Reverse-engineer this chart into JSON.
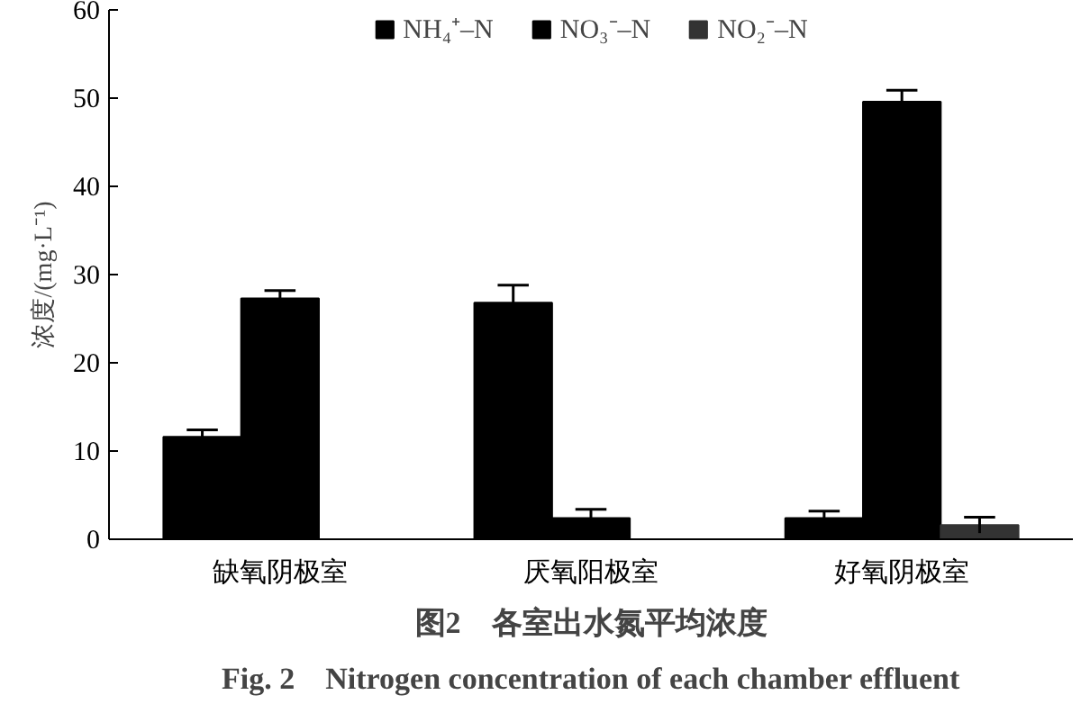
{
  "chart_data": {
    "type": "bar",
    "categories": [
      "缺氧阴极室",
      "厌氧阳极室",
      "好氧阴极室"
    ],
    "ylabel": "浓度/(mg·L⁻¹)",
    "ylim": [
      0,
      60
    ],
    "yticks": [
      0,
      10,
      20,
      30,
      40,
      50,
      60
    ],
    "grid": false,
    "legend": "top",
    "annotations": [
      "图2　各室出水氮平均浓度",
      "Fig. 2　Nitrogen concentration of each chamber effluent"
    ],
    "series": [
      {
        "name": "NH₄⁺–N",
        "color": "#000000",
        "values": [
          11.6,
          26.8,
          2.4
        ],
        "errors": [
          0.8,
          2.0,
          0.8
        ]
      },
      {
        "name": "NO₃⁻–N",
        "color": "#000000",
        "values": [
          27.3,
          2.4,
          49.6
        ],
        "errors": [
          0.9,
          1.0,
          1.3
        ]
      },
      {
        "name": "NO₂⁻–N",
        "color": "#333333",
        "values": [
          0,
          0,
          1.6
        ],
        "errors": [
          null,
          null,
          0.9
        ]
      }
    ]
  }
}
